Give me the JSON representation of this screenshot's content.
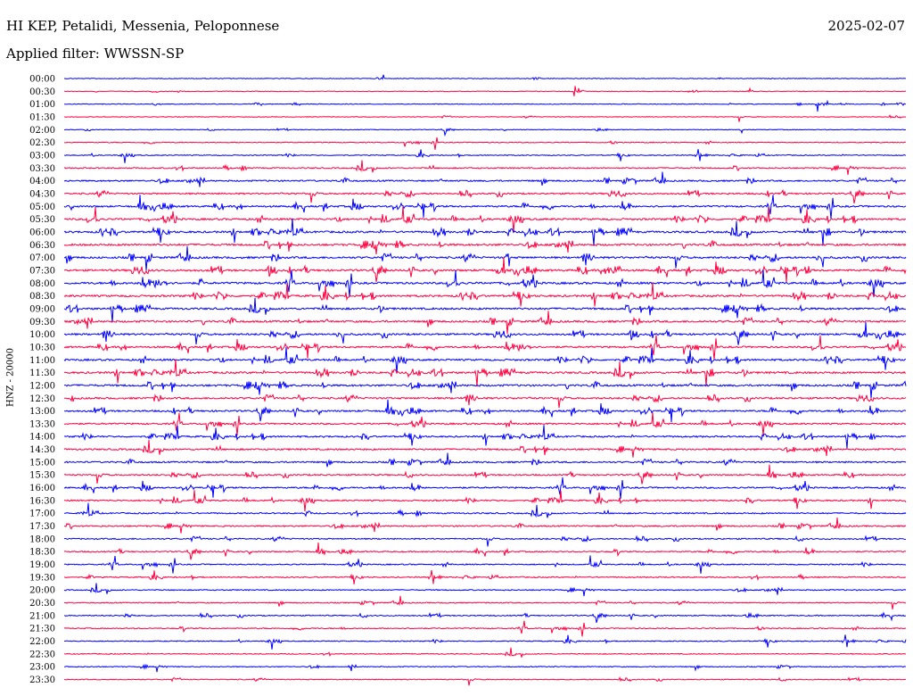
{
  "header": {
    "station": "HI KEP, Petalidi, Messenia, Peloponnese",
    "date": "2025-02-07",
    "filter": "Applied filter: WWSSN-SP"
  },
  "chart_data": {
    "type": "line",
    "title": "HI KEP, Petalidi, Messenia, Peloponnese",
    "subtitle": "Applied filter: WWSSN-SP",
    "ylabel": "HNZ - 20000",
    "xlabel": "",
    "grid": false,
    "colors": [
      "#0000ff",
      "#ff0040"
    ],
    "categories": [
      "00:00",
      "00:30",
      "01:00",
      "01:30",
      "02:00",
      "02:30",
      "03:00",
      "03:30",
      "04:00",
      "04:30",
      "05:00",
      "05:30",
      "06:00",
      "06:30",
      "07:00",
      "07:30",
      "08:00",
      "08:30",
      "09:00",
      "09:30",
      "10:00",
      "10:30",
      "11:00",
      "11:30",
      "12:00",
      "12:30",
      "13:00",
      "13:30",
      "14:00",
      "14:30",
      "15:00",
      "15:30",
      "16:00",
      "16:30",
      "17:00",
      "17:30",
      "18:00",
      "18:30",
      "19:00",
      "19:30",
      "20:00",
      "20:30",
      "21:00",
      "21:30",
      "22:00",
      "22:30",
      "23:00",
      "23:30"
    ],
    "activity": [
      0.05,
      0.05,
      0.08,
      0.05,
      0.05,
      0.12,
      0.15,
      0.3,
      0.4,
      0.45,
      0.5,
      0.55,
      0.6,
      0.6,
      0.6,
      0.62,
      0.62,
      0.6,
      0.58,
      0.55,
      0.55,
      0.52,
      0.55,
      0.6,
      0.58,
      0.5,
      0.5,
      0.45,
      0.45,
      0.45,
      0.42,
      0.4,
      0.4,
      0.38,
      0.35,
      0.35,
      0.3,
      0.3,
      0.25,
      0.25,
      0.22,
      0.2,
      0.22,
      0.18,
      0.18,
      0.15,
      0.15,
      0.15
    ]
  }
}
